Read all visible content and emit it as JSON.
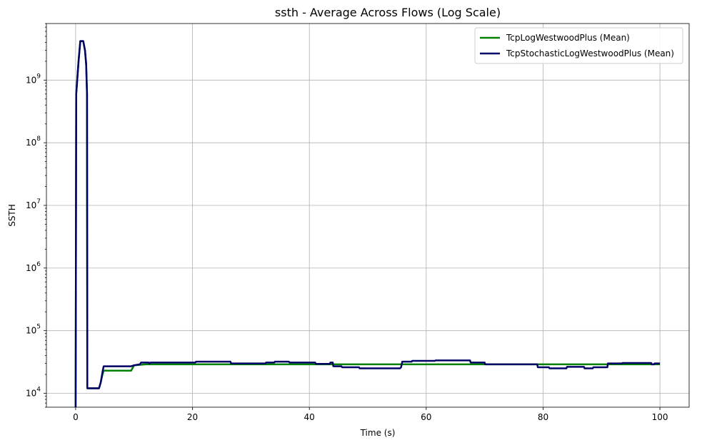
{
  "chart_data": {
    "type": "line",
    "title": "ssth - Average Across Flows (Log Scale)",
    "xlabel": "Time (s)",
    "ylabel": "SSTH",
    "xlim": [
      -5,
      105
    ],
    "ylim": [
      6000,
      8000000000
    ],
    "yscale": "log",
    "grid": true,
    "legend_position": "top-right",
    "x_ticks": [
      {
        "value": 0,
        "label": "0"
      },
      {
        "value": 20,
        "label": "20"
      },
      {
        "value": 40,
        "label": "40"
      },
      {
        "value": 60,
        "label": "60"
      },
      {
        "value": 80,
        "label": "80"
      },
      {
        "value": 100,
        "label": "100"
      }
    ],
    "y_ticks": [
      {
        "value": 10000,
        "base": "10",
        "exp": "4"
      },
      {
        "value": 100000,
        "base": "10",
        "exp": "5"
      },
      {
        "value": 1000000,
        "base": "10",
        "exp": "6"
      },
      {
        "value": 10000000,
        "base": "10",
        "exp": "7"
      },
      {
        "value": 100000000,
        "base": "10",
        "exp": "8"
      },
      {
        "value": 1000000000,
        "base": "10",
        "exp": "9"
      }
    ],
    "series": [
      {
        "name": "TcpLogWestwoodPlus (Mean)",
        "color": "#008000",
        "points": [
          [
            0,
            6000
          ],
          [
            0.1,
            600000000
          ],
          [
            0.5,
            2000000000
          ],
          [
            0.8,
            4200000000
          ],
          [
            1.3,
            4200000000
          ],
          [
            1.6,
            3000000000
          ],
          [
            1.8,
            1800000000
          ],
          [
            1.95,
            600000000
          ],
          [
            2.0,
            12000
          ],
          [
            4.0,
            12000
          ],
          [
            4.3,
            15000
          ],
          [
            4.6,
            20000
          ],
          [
            4.8,
            23000
          ],
          [
            9.5,
            23000
          ],
          [
            10.0,
            28000
          ],
          [
            12.0,
            29000
          ],
          [
            20.0,
            29000
          ],
          [
            30.0,
            29000
          ],
          [
            44.0,
            29000
          ],
          [
            60.0,
            29000
          ],
          [
            80.0,
            29000
          ],
          [
            90.0,
            29000
          ],
          [
            100.0,
            29000
          ]
        ]
      },
      {
        "name": "TcpStochasticLogWestwoodPlus (Mean)",
        "color": "#000066",
        "points": [
          [
            0,
            6000
          ],
          [
            0.1,
            600000000
          ],
          [
            0.5,
            2000000000
          ],
          [
            0.8,
            4200000000
          ],
          [
            1.3,
            4200000000
          ],
          [
            1.6,
            3000000000
          ],
          [
            1.8,
            1800000000
          ],
          [
            1.95,
            600000000
          ],
          [
            2.0,
            12000
          ],
          [
            4.0,
            12000
          ],
          [
            4.3,
            15000
          ],
          [
            4.6,
            22000
          ],
          [
            4.8,
            27000
          ],
          [
            9.5,
            27000
          ],
          [
            10.0,
            28000
          ],
          [
            11.0,
            29000
          ],
          [
            11.2,
            31000
          ],
          [
            12.5,
            31000
          ],
          [
            12.6,
            30000
          ],
          [
            12.8,
            31000
          ],
          [
            20.5,
            31000
          ],
          [
            20.6,
            32000
          ],
          [
            26.5,
            32000
          ],
          [
            26.6,
            30000
          ],
          [
            32.5,
            30000
          ],
          [
            32.6,
            31000
          ],
          [
            34.0,
            31000
          ],
          [
            34.1,
            32000
          ],
          [
            36.5,
            32000
          ],
          [
            36.6,
            31000
          ],
          [
            41.0,
            31000
          ],
          [
            41.1,
            29500
          ],
          [
            43.5,
            29500
          ],
          [
            43.6,
            31000
          ],
          [
            44.0,
            31000
          ],
          [
            44.1,
            27000
          ],
          [
            45.5,
            27000
          ],
          [
            45.6,
            26000
          ],
          [
            48.5,
            26000
          ],
          [
            48.6,
            25000
          ],
          [
            55.5,
            25000
          ],
          [
            55.7,
            26000
          ],
          [
            55.9,
            32000
          ],
          [
            57.5,
            32000
          ],
          [
            57.6,
            33000
          ],
          [
            61.5,
            33000
          ],
          [
            61.6,
            33500
          ],
          [
            67.5,
            33500
          ],
          [
            67.6,
            31000
          ],
          [
            70.0,
            31000
          ],
          [
            70.1,
            29000
          ],
          [
            79.0,
            29000
          ],
          [
            79.1,
            26000
          ],
          [
            81.0,
            26000
          ],
          [
            81.1,
            25000
          ],
          [
            84.0,
            25000
          ],
          [
            84.1,
            26500
          ],
          [
            87.0,
            26500
          ],
          [
            87.1,
            25000
          ],
          [
            88.5,
            25000
          ],
          [
            88.6,
            26000
          ],
          [
            91.0,
            26000
          ],
          [
            91.1,
            30000
          ],
          [
            93.5,
            30000
          ],
          [
            93.6,
            30500
          ],
          [
            98.5,
            30500
          ],
          [
            98.6,
            29000
          ],
          [
            99.0,
            29000
          ],
          [
            99.1,
            30000
          ],
          [
            100.0,
            30000
          ]
        ]
      }
    ]
  }
}
